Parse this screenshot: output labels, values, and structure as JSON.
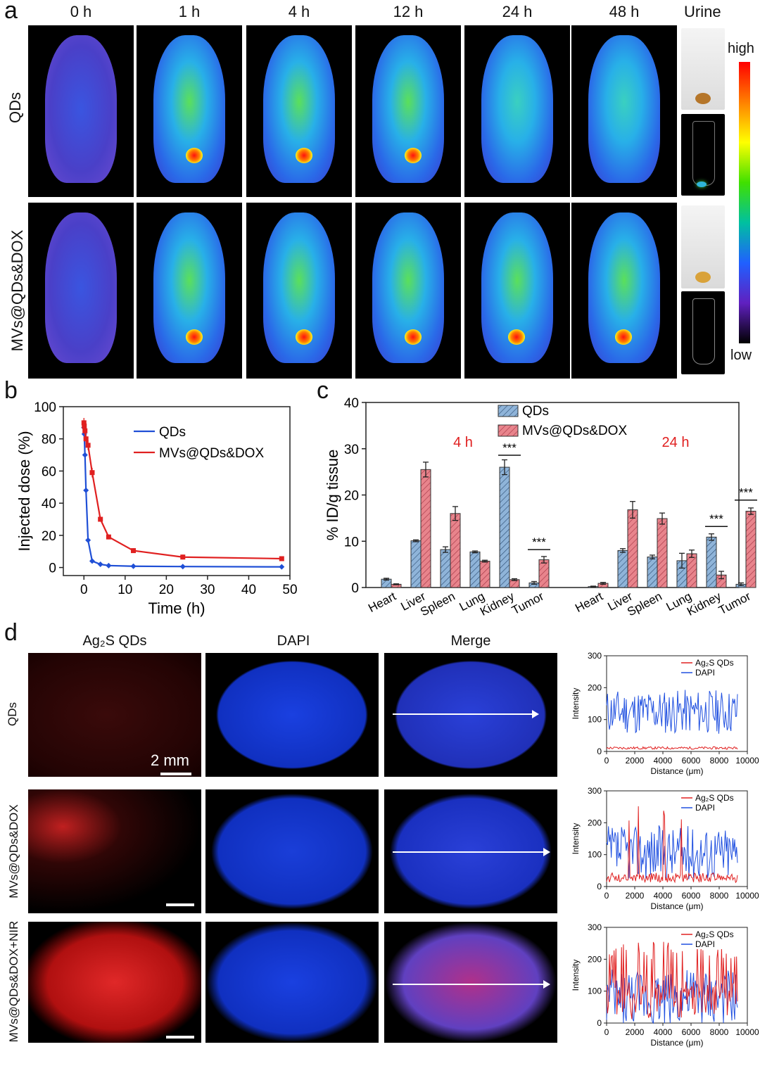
{
  "panel_a": {
    "letter": "a",
    "time_labels": [
      "0 h",
      "1 h",
      "4 h",
      "12 h",
      "24 h",
      "48 h"
    ],
    "urine_label": "Urine",
    "row_labels": [
      "QDs",
      "MVs@QDs&DOX"
    ],
    "colorbar_high": "high",
    "colorbar_low": "low"
  },
  "panel_b": {
    "letter": "b"
  },
  "panel_c": {
    "letter": "c",
    "group_labels": [
      "4 h",
      "24 h"
    ],
    "significance": "***"
  },
  "panel_d": {
    "letter": "d",
    "column_headers": [
      "Ag₂S QDs",
      "DAPI",
      "Merge"
    ],
    "row_labels": [
      "QDs",
      "MVs@QDs&DOX",
      "MVs@QDs&DOX+NIR"
    ],
    "scale_bar_label": "2 mm"
  },
  "chart_data": [
    {
      "type": "line",
      "panel": "b",
      "xlabel": "Time (h)",
      "ylabel": "Injected dose (%)",
      "xlim": [
        -5,
        50
      ],
      "ylim": [
        -5,
        100
      ],
      "xticks": [
        0,
        10,
        20,
        30,
        40,
        50
      ],
      "yticks": [
        0,
        20,
        40,
        60,
        80,
        100
      ],
      "legend_position": "top-right",
      "series": [
        {
          "name": "QDs",
          "color": "#1f4fd6",
          "x": [
            0,
            0.08,
            0.25,
            0.5,
            1,
            2,
            4,
            6,
            12,
            24,
            48
          ],
          "y": [
            87,
            83,
            70,
            48,
            17,
            4,
            2,
            1.2,
            0.8,
            0.6,
            0.4
          ]
        },
        {
          "name": "MVs@QDs&DOX",
          "color": "#e02020",
          "x": [
            0,
            0.08,
            0.25,
            0.5,
            1,
            2,
            4,
            6,
            12,
            24,
            48
          ],
          "y": [
            90,
            88,
            85,
            80,
            76,
            59,
            30,
            19,
            10.5,
            6.5,
            5.5
          ]
        }
      ]
    },
    {
      "type": "bar",
      "panel": "c",
      "ylabel": "% ID/g tissue",
      "ylim": [
        0,
        40
      ],
      "yticks": [
        0,
        10,
        20,
        30,
        40
      ],
      "categories": [
        "Heart",
        "Liver",
        "Spleen",
        "Lung",
        "Kidney",
        "Tumor",
        "Heart",
        "Liver",
        "Spleen",
        "Lung",
        "Kidney",
        "Tumor"
      ],
      "legend_position": "top-center",
      "series": [
        {
          "name": "QDs",
          "color": "#8fb4d9",
          "values": [
            1.8,
            10.1,
            8.2,
            7.7,
            26.0,
            1.0,
            0.2,
            8.0,
            6.6,
            5.8,
            10.9,
            0.7
          ],
          "errors": [
            0.2,
            0.2,
            0.6,
            0.2,
            1.6,
            0.3,
            0.1,
            0.4,
            0.4,
            1.6,
            0.7,
            0.3
          ]
        },
        {
          "name": "MVs@QDs&DOX",
          "color": "#e8848c",
          "values": [
            0.7,
            25.5,
            16.0,
            5.7,
            1.7,
            6.0,
            0.9,
            16.8,
            14.9,
            7.3,
            2.7,
            16.5
          ],
          "errors": [
            0.1,
            1.6,
            1.5,
            0.2,
            0.2,
            0.7,
            0.2,
            1.8,
            1.2,
            0.8,
            0.8,
            0.7
          ]
        }
      ]
    },
    {
      "type": "line",
      "panel": "d-1",
      "xlabel": "Distance (μm)",
      "ylabel": "Intensity",
      "xlim": [
        0,
        10000
      ],
      "ylim": [
        0,
        300
      ],
      "xticks": [
        0,
        2000,
        4000,
        6000,
        8000,
        10000
      ],
      "yticks": [
        0,
        100,
        200,
        300
      ],
      "series": [
        {
          "name": "Ag₂S QDs",
          "color": "#e02020",
          "level": 10,
          "spread": 8,
          "spikes": 0
        },
        {
          "name": "DAPI",
          "color": "#2050e0",
          "level": 110,
          "spread": 140,
          "spikes": 0
        }
      ]
    },
    {
      "type": "line",
      "panel": "d-2",
      "xlabel": "Distance (μm)",
      "ylabel": "Intensity",
      "xlim": [
        0,
        10000
      ],
      "ylim": [
        0,
        300
      ],
      "xticks": [
        0,
        2000,
        4000,
        6000,
        8000,
        10000
      ],
      "yticks": [
        0,
        100,
        200,
        300
      ],
      "series": [
        {
          "name": "Ag₂S QDs",
          "color": "#e02020",
          "level": 25,
          "spread": 30,
          "spikes": 8
        },
        {
          "name": "DAPI",
          "color": "#2050e0",
          "level": 90,
          "spread": 170,
          "spikes": 0
        }
      ]
    },
    {
      "type": "line",
      "panel": "d-3",
      "xlabel": "Distance (μm)",
      "ylabel": "Intensity",
      "xlim": [
        0,
        10000
      ],
      "ylim": [
        0,
        300
      ],
      "xticks": [
        0,
        2000,
        4000,
        6000,
        8000,
        10000
      ],
      "yticks": [
        0,
        100,
        200,
        300
      ],
      "series": [
        {
          "name": "Ag₂S QDs",
          "color": "#e02020",
          "level": 60,
          "spread": 120,
          "spikes": 30
        },
        {
          "name": "DAPI",
          "color": "#2050e0",
          "level": 60,
          "spread": 180,
          "spikes": 0
        }
      ]
    }
  ]
}
